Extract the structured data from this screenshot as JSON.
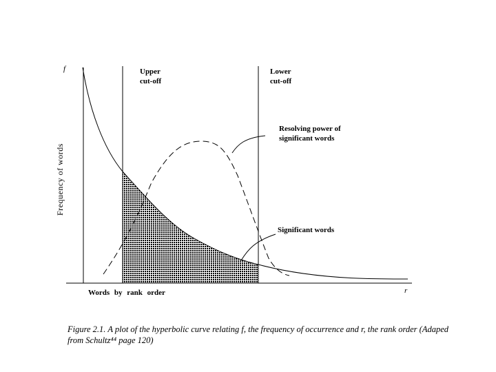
{
  "figure": {
    "axis_y_symbol": "f",
    "axis_x_symbol": "r",
    "ylabel": "Frequency of words",
    "xlabel": "Words by rank order",
    "upper_cutoff": {
      "line1": "Upper",
      "line2": "cut-off"
    },
    "lower_cutoff": {
      "line1": "Lower",
      "line2": "cut-off"
    },
    "resolving_power": {
      "line1": "Resolving power of",
      "line2": "significant words"
    },
    "significant_words": "Significant words",
    "caption": "Figure 2.1.   A plot of the hyperbolic curve relating f, the frequency of occurrence and r, the rank order (Adaped from Schultz⁴⁴ page 120)"
  }
}
